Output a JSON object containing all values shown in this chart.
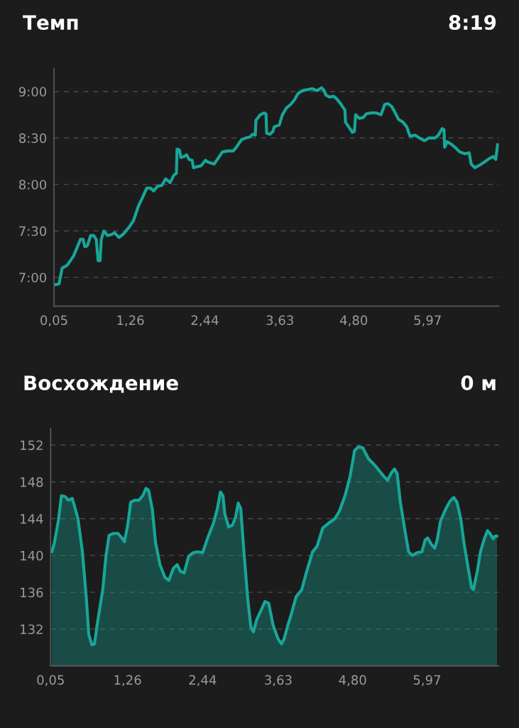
{
  "chart_data": [
    {
      "type": "line",
      "title": "Темп",
      "annotations": [
        "8:19"
      ],
      "x": [
        0.06,
        0.13,
        0.18,
        0.26,
        0.36,
        0.41,
        0.47,
        0.51,
        0.54,
        0.58,
        0.63,
        0.68,
        0.72,
        0.75,
        0.78,
        0.8,
        0.84,
        0.9,
        0.96,
        1.01,
        1.08,
        1.14,
        1.24,
        1.31,
        1.39,
        1.44,
        1.52,
        1.58,
        1.63,
        1.69,
        1.76,
        1.82,
        1.89,
        1.95,
        1.99,
        2.0,
        2.04,
        2.06,
        2.11,
        2.15,
        2.19,
        2.24,
        2.26,
        2.31,
        2.38,
        2.45,
        2.49,
        2.59,
        2.64,
        2.72,
        2.79,
        2.89,
        2.94,
        3.02,
        3.09,
        3.15,
        3.2,
        3.24,
        3.25,
        3.32,
        3.38,
        3.41,
        3.42,
        3.47,
        3.52,
        3.54,
        3.62,
        3.67,
        3.73,
        3.8,
        3.86,
        3.92,
        3.99,
        4.07,
        4.14,
        4.22,
        4.29,
        4.33,
        4.36,
        4.42,
        4.48,
        4.53,
        4.59,
        4.66,
        4.67,
        4.72,
        4.78,
        4.81,
        4.83,
        4.89,
        4.95,
        5.0,
        5.08,
        5.15,
        5.23,
        5.26,
        5.29,
        5.34,
        5.4,
        5.45,
        5.51,
        5.58,
        5.64,
        5.69,
        5.77,
        5.84,
        5.92,
        5.99,
        6.09,
        6.14,
        6.2,
        6.23,
        6.24,
        6.28,
        6.35,
        6.42,
        6.48,
        6.56,
        6.63,
        6.66,
        6.72,
        6.8,
        6.87,
        6.95,
        7.01,
        7.05,
        7.08
      ],
      "series": [
        {
          "color": "#17a698",
          "values": [
            6.92,
            6.93,
            7.1,
            7.13,
            7.23,
            7.31,
            7.41,
            7.41,
            7.33,
            7.34,
            7.45,
            7.45,
            7.41,
            7.18,
            7.18,
            7.41,
            7.5,
            7.45,
            7.46,
            7.48,
            7.43,
            7.46,
            7.54,
            7.61,
            7.77,
            7.84,
            7.96,
            7.96,
            7.93,
            7.98,
            7.99,
            8.06,
            8.02,
            8.1,
            8.12,
            8.38,
            8.37,
            8.29,
            8.3,
            8.32,
            8.27,
            8.26,
            8.18,
            8.19,
            8.2,
            8.26,
            8.24,
            8.22,
            8.27,
            8.35,
            8.36,
            8.36,
            8.4,
            8.48,
            8.5,
            8.51,
            8.54,
            8.53,
            8.69,
            8.75,
            8.77,
            8.76,
            8.55,
            8.54,
            8.57,
            8.62,
            8.64,
            8.75,
            8.82,
            8.86,
            8.91,
            8.98,
            9.01,
            9.02,
            9.03,
            9.01,
            9.04,
            9.01,
            8.96,
            8.94,
            8.95,
            8.92,
            8.87,
            8.8,
            8.67,
            8.62,
            8.56,
            8.57,
            8.75,
            8.71,
            8.72,
            8.76,
            8.77,
            8.77,
            8.75,
            8.8,
            8.86,
            8.87,
            8.84,
            8.78,
            8.7,
            8.67,
            8.62,
            8.52,
            8.53,
            8.5,
            8.47,
            8.5,
            8.5,
            8.53,
            8.6,
            8.59,
            8.4,
            8.46,
            8.43,
            8.39,
            8.35,
            8.33,
            8.34,
            8.22,
            8.18,
            8.21,
            8.24,
            8.28,
            8.3,
            8.27,
            8.43
          ]
        }
      ],
      "xlim": [
        0.05,
        7.1
      ],
      "xticks": [
        {
          "value": 0.05,
          "label": "0,05"
        },
        {
          "value": 1.26,
          "label": "1,26"
        },
        {
          "value": 2.44,
          "label": "2,44"
        },
        {
          "value": 3.63,
          "label": "3,63"
        },
        {
          "value": 4.8,
          "label": "4,80"
        },
        {
          "value": 5.97,
          "label": "5,97"
        }
      ],
      "ylim": [
        6.69,
        9.25
      ],
      "yticks": [
        {
          "value": 7,
          "label": "7:00"
        },
        {
          "value": 7.5,
          "label": "7:30"
        },
        {
          "value": 8,
          "label": "8:00"
        },
        {
          "value": 8.5,
          "label": "8:30"
        },
        {
          "value": 9,
          "label": "9:00"
        }
      ],
      "grid": "y",
      "line_style": "solid"
    },
    {
      "type": "area",
      "title": "Восхождение",
      "annotations": [
        "0 м"
      ],
      "x": [
        0.07,
        0.11,
        0.17,
        0.22,
        0.28,
        0.33,
        0.39,
        0.42,
        0.48,
        0.55,
        0.61,
        0.65,
        0.7,
        0.74,
        0.78,
        0.81,
        0.87,
        0.92,
        0.97,
        1.04,
        1.11,
        1.17,
        1.21,
        1.26,
        1.31,
        1.37,
        1.44,
        1.5,
        1.55,
        1.59,
        1.65,
        1.7,
        1.77,
        1.85,
        1.91,
        1.98,
        2.04,
        2.09,
        2.15,
        2.22,
        2.29,
        2.37,
        2.44,
        2.52,
        2.61,
        2.67,
        2.72,
        2.76,
        2.79,
        2.85,
        2.91,
        2.96,
        3.0,
        3.04,
        3.09,
        3.15,
        3.2,
        3.24,
        3.29,
        3.37,
        3.42,
        3.48,
        3.55,
        3.63,
        3.68,
        3.72,
        3.78,
        3.83,
        3.91,
        4.0,
        4.07,
        4.17,
        4.24,
        4.33,
        4.42,
        4.52,
        4.59,
        4.68,
        4.76,
        4.83,
        4.89,
        4.96,
        5.05,
        5.15,
        5.22,
        5.29,
        5.35,
        5.41,
        5.46,
        5.5,
        5.55,
        5.63,
        5.68,
        5.74,
        5.81,
        5.89,
        5.94,
        5.98,
        6.04,
        6.09,
        6.13,
        6.18,
        6.26,
        6.33,
        6.39,
        6.44,
        6.5,
        6.55,
        6.61,
        6.67,
        6.7,
        6.76,
        6.81,
        6.87,
        6.92,
        6.96,
        7.01,
        7.04,
        7.07
      ],
      "series": [
        {
          "color": "#17a698",
          "values": [
            140.4,
            141.4,
            143.7,
            146.5,
            146.4,
            146.0,
            146.2,
            145.5,
            144.0,
            140.4,
            135.5,
            131.4,
            130.3,
            130.4,
            132.4,
            133.7,
            136.3,
            139.9,
            142.2,
            142.4,
            142.4,
            141.9,
            141.5,
            143.2,
            145.8,
            146.0,
            146.0,
            146.5,
            147.3,
            147.1,
            145.0,
            141.4,
            139.0,
            137.6,
            137.3,
            138.6,
            139.0,
            138.3,
            138.1,
            139.9,
            140.3,
            140.4,
            140.3,
            141.9,
            143.5,
            145.0,
            146.9,
            146.5,
            144.5,
            143.1,
            143.3,
            144.2,
            145.7,
            145.1,
            140.4,
            135.3,
            132.2,
            131.7,
            133.0,
            134.2,
            135.0,
            134.8,
            132.4,
            130.9,
            130.4,
            130.9,
            132.4,
            133.5,
            135.5,
            136.3,
            138.1,
            140.4,
            141.0,
            143.0,
            143.5,
            144.0,
            144.8,
            146.5,
            148.6,
            151.4,
            151.8,
            151.7,
            150.5,
            149.8,
            149.2,
            148.6,
            148.2,
            149.0,
            149.4,
            148.9,
            145.8,
            142.4,
            140.4,
            140.0,
            140.3,
            140.4,
            141.7,
            141.9,
            141.2,
            140.8,
            141.7,
            143.7,
            145.0,
            145.9,
            146.3,
            145.8,
            144.0,
            141.4,
            138.9,
            136.5,
            136.3,
            138.3,
            140.4,
            141.8,
            142.7,
            142.4,
            141.8,
            142.1,
            142.1
          ]
        }
      ],
      "xlim": [
        0.05,
        7.1
      ],
      "xticks": [
        {
          "value": 0.05,
          "label": "0,05"
        },
        {
          "value": 1.26,
          "label": "1,26"
        },
        {
          "value": 2.44,
          "label": "2,44"
        },
        {
          "value": 3.63,
          "label": "3,63"
        },
        {
          "value": 4.8,
          "label": "4,80"
        },
        {
          "value": 5.97,
          "label": "5,97"
        }
      ],
      "ylim": [
        128,
        153.8
      ],
      "yticks": [
        132,
        136,
        140,
        144,
        148,
        152
      ],
      "grid": "y",
      "line_style": "solid"
    }
  ]
}
